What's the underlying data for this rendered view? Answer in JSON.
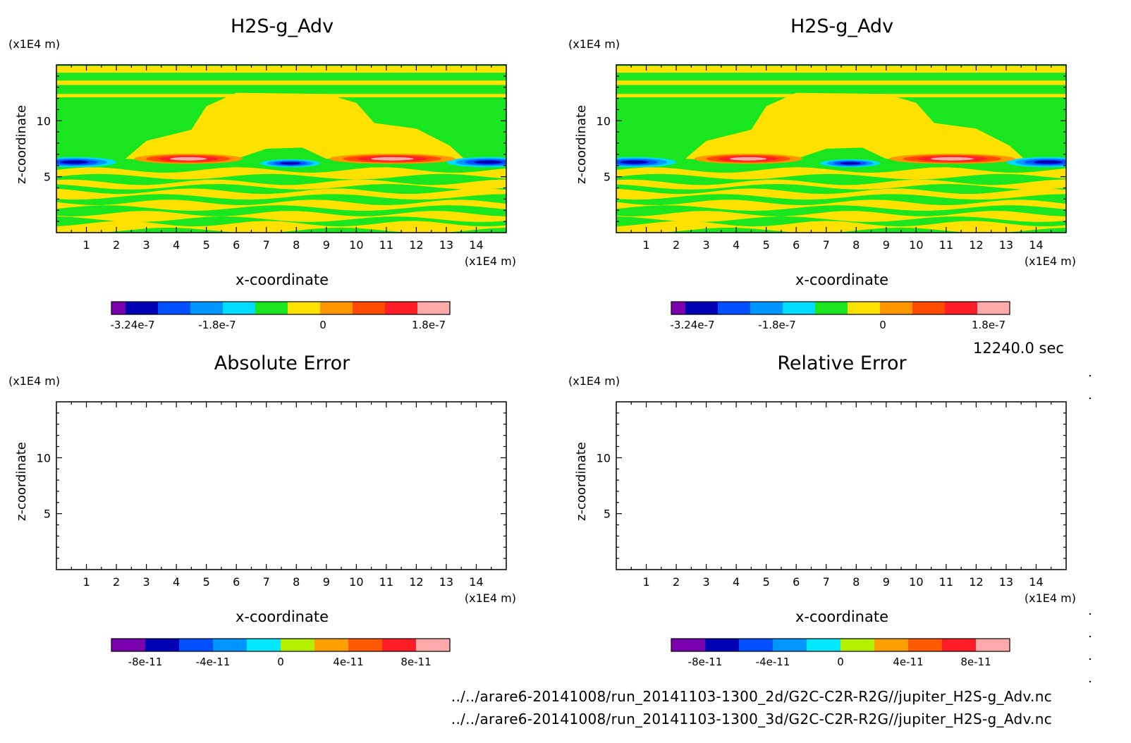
{
  "colors": {
    "scale_a": [
      "#7b00ae",
      "#0000b4",
      "#0050ff",
      "#0096ff",
      "#00dcff",
      "#19e61e",
      "#ffe100",
      "#ff9600",
      "#ff4b00",
      "#ff1e28",
      "#ffaaaa"
    ],
    "scale_b": [
      "#7b00ae",
      "#0000b4",
      "#0050ff",
      "#0096ff",
      "#00e8ff",
      "#b4f000",
      "#ffa000",
      "#ff5a00",
      "#ff1e28",
      "#ffaaaa"
    ]
  },
  "timestamp": "12240.0 sec",
  "footer": {
    "line1": "../../arare6-20141008/run_20141103-1300_2d/G2C-C2R-R2G//jupiter_H2S-g_Adv.nc",
    "line2": "../../arare6-20141008/run_20141103-1300_3d/G2C-C2R-R2G//jupiter_H2S-g_Adv.nc"
  },
  "chart_data": [
    {
      "type": "heatmap",
      "title": "H2S-g_Adv",
      "xlabel": "x-coordinate",
      "ylabel": "z-coordinate",
      "x_unit": "(x1E4 m)",
      "y_unit": "(x1E4 m)",
      "xlim": [
        0,
        15
      ],
      "ylim": [
        0,
        15
      ],
      "x_ticks": [
        1,
        2,
        3,
        4,
        5,
        6,
        7,
        8,
        9,
        10,
        11,
        12,
        13,
        14
      ],
      "y_ticks": [
        5,
        10
      ],
      "colorbar": {
        "scale": "scale_a",
        "ticks": [
          "-3.24e-7",
          "-1.8e-7",
          "0",
          "1.8e-7"
        ],
        "tick_values": [
          -3.24e-07,
          -1.8e-07,
          0,
          1.8e-07
        ],
        "range": [
          -3.6e-07,
          2.16e-07
        ]
      },
      "filled": true
    },
    {
      "type": "heatmap",
      "title": "H2S-g_Adv",
      "xlabel": "x-coordinate",
      "ylabel": "z-coordinate",
      "x_unit": "(x1E4 m)",
      "y_unit": "(x1E4 m)",
      "xlim": [
        0,
        15
      ],
      "ylim": [
        0,
        15
      ],
      "x_ticks": [
        1,
        2,
        3,
        4,
        5,
        6,
        7,
        8,
        9,
        10,
        11,
        12,
        13,
        14
      ],
      "y_ticks": [
        5,
        10
      ],
      "colorbar": {
        "scale": "scale_a",
        "ticks": [
          "-3.24e-7",
          "-1.8e-7",
          "0",
          "1.8e-7"
        ],
        "tick_values": [
          -3.24e-07,
          -1.8e-07,
          0,
          1.8e-07
        ],
        "range": [
          -3.6e-07,
          2.16e-07
        ]
      },
      "filled": true
    },
    {
      "type": "heatmap",
      "title": "Absolute Error",
      "xlabel": "x-coordinate",
      "ylabel": "z-coordinate",
      "x_unit": "(x1E4 m)",
      "y_unit": "(x1E4 m)",
      "xlim": [
        0,
        15
      ],
      "ylim": [
        0,
        15
      ],
      "x_ticks": [
        1,
        2,
        3,
        4,
        5,
        6,
        7,
        8,
        9,
        10,
        11,
        12,
        13,
        14
      ],
      "y_ticks": [
        5,
        10
      ],
      "colorbar": {
        "scale": "scale_b",
        "ticks": [
          "-8e-11",
          "-4e-11",
          "0",
          "4e-11",
          "8e-11"
        ],
        "tick_values": [
          -8e-11,
          -4e-11,
          0,
          4e-11,
          8e-11
        ],
        "range": [
          -1e-10,
          1e-10
        ]
      },
      "filled": false
    },
    {
      "type": "heatmap",
      "title": "Relative Error",
      "xlabel": "x-coordinate",
      "ylabel": "z-coordinate",
      "x_unit": "(x1E4 m)",
      "y_unit": "(x1E4 m)",
      "xlim": [
        0,
        15
      ],
      "ylim": [
        0,
        15
      ],
      "x_ticks": [
        1,
        2,
        3,
        4,
        5,
        6,
        7,
        8,
        9,
        10,
        11,
        12,
        13,
        14
      ],
      "y_ticks": [
        5,
        10
      ],
      "colorbar": {
        "scale": "scale_b",
        "ticks": [
          "-8e-11",
          "-4e-11",
          "0",
          "4e-11",
          "8e-11"
        ],
        "tick_values": [
          -8e-11,
          -4e-11,
          0,
          4e-11,
          8e-11
        ],
        "range": [
          -1e-10,
          1e-10
        ]
      },
      "filled": false
    }
  ]
}
